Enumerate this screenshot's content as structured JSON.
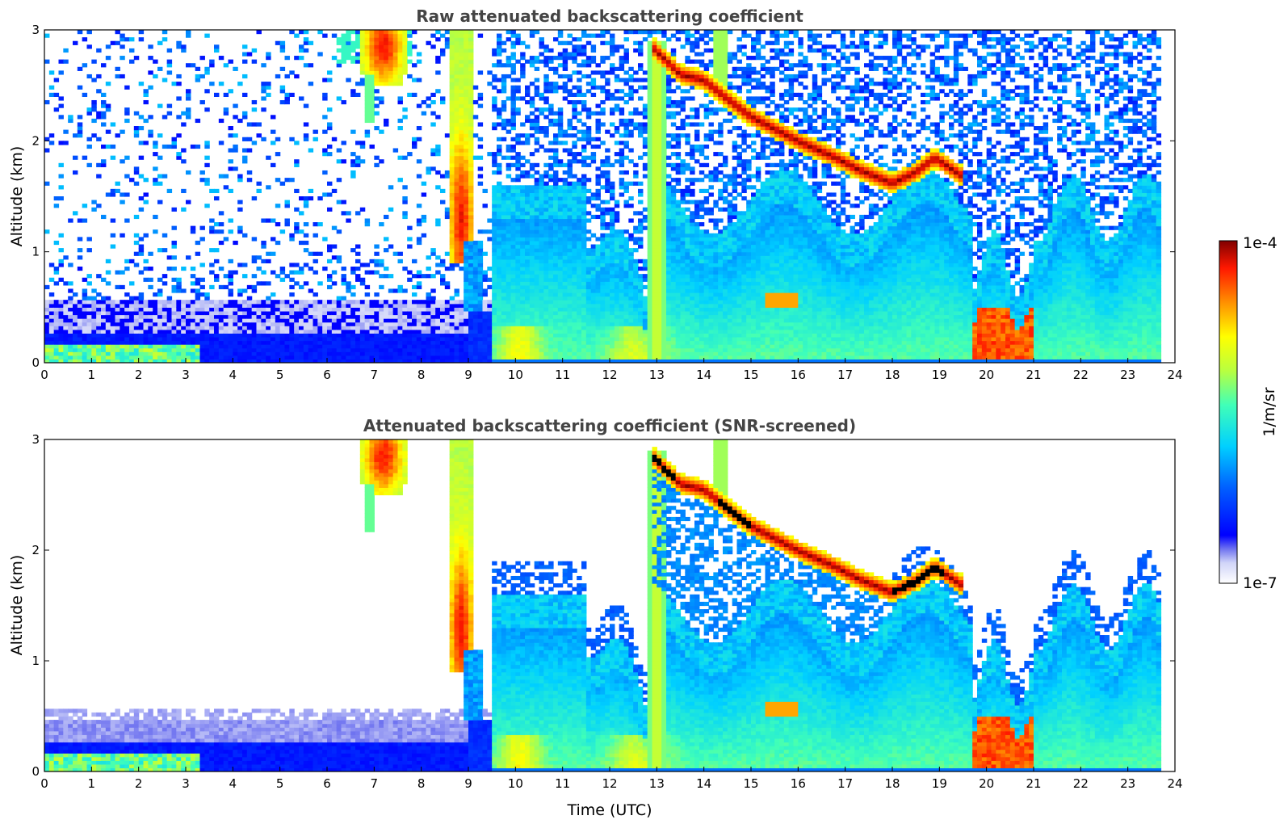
{
  "chart_data": [
    {
      "type": "heatmap",
      "title": "Raw attenuated backscattering coefficient",
      "xlabel": "",
      "ylabel": "Altitude (km)",
      "x_ticks": [
        "0",
        "1",
        "2",
        "3",
        "4",
        "5",
        "6",
        "7",
        "8",
        "9",
        "10",
        "11",
        "12",
        "13",
        "14",
        "15",
        "16",
        "17",
        "18",
        "19",
        "20",
        "21",
        "22",
        "23",
        "24"
      ],
      "y_ticks": [
        "0",
        "1",
        "2",
        "3"
      ],
      "xlim": [
        0,
        24
      ],
      "ylim": [
        0,
        3
      ],
      "data_end_time": 23.7,
      "features": [
        {
          "type": "boundary_layer",
          "start": 0,
          "end": 9.5,
          "height": 0.3
        },
        {
          "type": "cloud_layer",
          "points": [
            [
              12.9,
              2.85
            ],
            [
              13.5,
              2.6
            ],
            [
              14.5,
              2.35
            ],
            [
              16,
              2.0
            ],
            [
              17.3,
              1.75
            ],
            [
              18,
              1.6
            ],
            [
              18.9,
              1.85
            ],
            [
              19.5,
              1.7
            ]
          ]
        },
        {
          "type": "high_cloud",
          "start": 6.8,
          "end": 7.6,
          "bottom": 2.5,
          "top": 3.0
        },
        {
          "type": "aerosol_plume",
          "start": 8.7,
          "end": 9.3,
          "bottom": 0.9,
          "top": 3.0
        },
        {
          "type": "strong_near_surface",
          "start": 19.7,
          "end": 21.0,
          "top": 0.5
        }
      ]
    },
    {
      "type": "heatmap",
      "title": "Attenuated backscattering coefficient (SNR-screened)",
      "xlabel": "Time (UTC)",
      "ylabel": "Altitude (km)",
      "x_ticks": [
        "0",
        "1",
        "2",
        "3",
        "4",
        "5",
        "6",
        "7",
        "8",
        "9",
        "10",
        "11",
        "12",
        "13",
        "14",
        "15",
        "16",
        "17",
        "18",
        "19",
        "20",
        "21",
        "22",
        "23",
        "24"
      ],
      "y_ticks": [
        "0",
        "1",
        "2",
        "3"
      ],
      "xlim": [
        0,
        24
      ],
      "ylim": [
        0,
        3
      ],
      "data_end_time": 23.7,
      "screened": true
    }
  ],
  "colorbar": {
    "label": "1/m/sr",
    "max_label": "1e-4",
    "min_label": "1e-7",
    "scale": "log",
    "range": [
      1e-07,
      0.0001
    ],
    "colormap": "jet"
  }
}
